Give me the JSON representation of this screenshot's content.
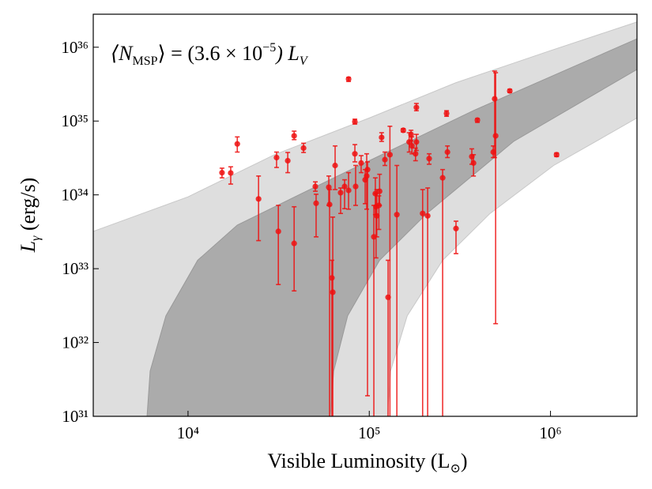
{
  "chart_data": {
    "type": "scatter",
    "annotation": [
      "⟨N",
      "MSP",
      "⟩ = (3.6 × 10",
      "−5",
      ") L",
      "V"
    ],
    "x_label": [
      "Visible Luminosity  (L",
      "⊙",
      ")"
    ],
    "y_label": [
      "L",
      "γ",
      " (erg/s)"
    ],
    "xscale": "log",
    "yscale": "log",
    "grid": false,
    "xlim": [
      3000.0,
      3000000.0
    ],
    "ylim": [
      1e+31,
      2.8e+36
    ],
    "xticks": [
      {
        "value": 10000.0,
        "label": "10⁴"
      },
      {
        "value": 100000.0,
        "label": "10⁵"
      },
      {
        "value": 1000000.0,
        "label": "10⁶"
      }
    ],
    "yticks": [
      {
        "value": 1e+31,
        "label": "10³¹"
      },
      {
        "value": 1e+32,
        "label": "10³²"
      },
      {
        "value": 1e+33,
        "label": "10³³"
      },
      {
        "value": 1e+34,
        "label": "10³⁴"
      },
      {
        "value": 1e+35,
        "label": "10³⁵"
      },
      {
        "value": 1e+36,
        "label": "10³⁶"
      }
    ],
    "bands": [
      {
        "color": "#dedede",
        "edge": "#c8c8c8",
        "upper_x": [
          3000.0,
          10000.0,
          30000.0,
          100000.0,
          300000.0,
          1000000.0,
          3000000.0
        ],
        "upper_y": [
          3.2e+33,
          9.4e+33,
          3.5e+34,
          1.1e+35,
          3.3e+35,
          9e+35,
          2.2e+36
        ],
        "lower_x": [
          3000.0,
          126000.0,
          131000.0,
          162000.0,
          254000.0,
          464000.0,
          1040000.0,
          3000000.0
        ],
        "lower_y": [
          1e+31,
          1e+31,
          4.1e+31,
          2.3e+32,
          1.3e+33,
          5.6e+33,
          2.5e+34,
          1.1e+35
        ]
      },
      {
        "color": "#ababab",
        "edge": "#999999",
        "upper_x": [
          5940.0,
          6180.0,
          7550.0,
          11300.0,
          18700.0,
          50900.0,
          96800.0,
          379000.0,
          3000000.0
        ],
        "upper_y": [
          1e+31,
          4.1e+31,
          2.3e+32,
          1.3e+33,
          3.9e+33,
          1.3e+34,
          2.8e+34,
          1.4e+35,
          1.3e+36
        ],
        "lower_x": [
          5940.0,
          61000.0,
          63600.0,
          76000.0,
          114000.0,
          208000.0,
          626000.0,
          3000000.0
        ],
        "lower_y": [
          1e+31,
          1e+31,
          4.1e+31,
          2.3e+32,
          1.3e+33,
          5.6e+33,
          5.3e+34,
          5e+35
        ]
      }
    ],
    "series": [
      {
        "color": "#ee1111",
        "x": [
          15400.0,
          17200.0,
          18700.0,
          24500.0,
          30800.0,
          31500.0,
          35500.0,
          38500.0,
          38500.0,
          43400.0,
          50400.0,
          50900.0,
          59800.0,
          60400.0,
          62200.0,
          62900.0,
          64800.0,
          69500.0,
          73100.0,
          76900.0,
          76900.0,
          83300.0,
          83300.0,
          84100.0,
          90200.0,
          94900.0,
          96800.0,
          97800.0,
          106000.0,
          108000.0,
          109000.0,
          110000.0,
          113000.0,
          114000.0,
          117000.0,
          122000.0,
          127000.0,
          130000.0,
          142000.0,
          154000.0,
          166000.0,
          170000.0,
          172000.0,
          180000.0,
          182000.0,
          182000.0,
          197000.0,
          210000.0,
          214000.0,
          254000.0,
          267000.0,
          270000.0,
          301000.0,
          368000.0,
          376000.0,
          395000.0,
          483000.0,
          492000.0,
          498000.0,
          596000.0,
          1080000.0
        ],
        "values": [
          2e+34,
          1.98e+34,
          4.9e+34,
          8.8e+33,
          3.2e+34,
          3.2e+33,
          2.9e+34,
          6.3e+34,
          2.2e+33,
          4.3e+34,
          1.3e+34,
          7.7e+33,
          1.27e+34,
          7.4e+33,
          7.5e+32,
          4.8e+32,
          2.5e+34,
          1.07e+34,
          1.3e+34,
          1.15e+34,
          3.71e+35,
          9.8e+34,
          3.6e+34,
          1.3e+34,
          2.7e+34,
          1.6e+34,
          1.8e+34,
          2.2e+34,
          2.7e+33,
          1.04e+34,
          6.9e+33,
          5.2e+33,
          7.2e+33,
          1.12e+34,
          6e+34,
          3e+34,
          4.1e+32,
          3.5e+34,
          5.4e+33,
          7.5e+34,
          5.2e+34,
          6.6e+34,
          4.6e+34,
          3.6e+34,
          5.2e+34,
          1.53e+35,
          5.6e+33,
          5.2e+33,
          3.1e+34,
          1.7e+34,
          1.27e+35,
          3.8e+34,
          3.5e+33,
          3.3e+34,
          2.7e+34,
          1.03e+35,
          3.8e+34,
          2e+35,
          6.3e+34,
          2.56e+35,
          3.5e+34
        ],
        "y_low": [
          1.7e+34,
          1.4e+34,
          3.8e+34,
          2.4e+33,
          2.35e+34,
          6.1e+32,
          2e+34,
          5.6e+34,
          5e+32,
          3.75e+34,
          1.12e+34,
          2.7e+33,
          7.2e+33,
          1e+30,
          1e+30,
          1e+30,
          1.18e+34,
          5.6e+33,
          6.5e+33,
          6.4e+33,
          3.44e+35,
          9.1e+34,
          2.8e+34,
          7.2e+33,
          2e+34,
          7.6e+33,
          6.4e+33,
          1.9e+31,
          1e+30,
          5.4e+33,
          1.4e+33,
          2.7e+33,
          3.4e+33,
          7.2e+33,
          5.3e+34,
          2.5e+34,
          1e+30,
          1e+30,
          1e+30,
          7.1e+34,
          3.8e+34,
          5.4e+34,
          3.6e+34,
          2.9e+34,
          4e+34,
          1.38e+35,
          1e+30,
          1e+30,
          2.6e+34,
          1e+30,
          1.16e+35,
          3.2e+34,
          1.6e+33,
          2.6e+34,
          1.8e+34,
          9.6e+34,
          3.2e+34,
          3.2e+34,
          1.8e+32,
          2.44e+35,
          3.3e+34
        ],
        "y_high": [
          2.3e+34,
          2.4e+34,
          6.1e+34,
          1.8e+34,
          3.8e+34,
          7.2e+33,
          3.75e+34,
          7.3e+34,
          6.9e+33,
          5e+34,
          1.5e+34,
          1.02e+34,
          1.8e+34,
          1.18e+34,
          1.3e+33,
          5e+33,
          4.6e+34,
          1.24e+34,
          1.6e+34,
          2e+34,
          3.9e+35,
          1.06e+35,
          4.8e+34,
          2.5e+34,
          3.4e+34,
          2.2e+34,
          3.6e+34,
          2.8e+34,
          7.2e+33,
          1.7e+34,
          1.04e+34,
          1.18e+34,
          9.7e+33,
          1.9e+34,
          6.95e+34,
          3.8e+34,
          1.3e+33,
          8.5e+34,
          2.5e+34,
          7.9e+34,
          6.95e+34,
          7.5e+34,
          6.1e+34,
          4.3e+34,
          6.6e+34,
          1.73e+35,
          1.18e+34,
          1.24e+34,
          3.6e+34,
          2.2e+34,
          1.38e+35,
          4.6e+34,
          4.4e+33,
          4.2e+34,
          3.5e+34,
          1.08e+35,
          4.6e+34,
          4.75e+35,
          4.52e+35,
          2.69e+35,
          3.7e+34
        ]
      }
    ]
  }
}
